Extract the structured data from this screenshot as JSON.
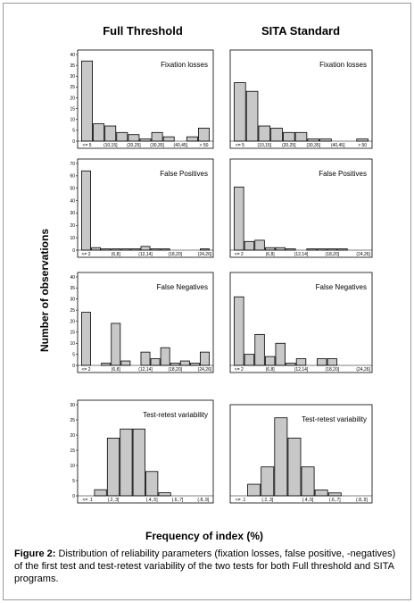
{
  "figure": {
    "column_titles": [
      "Full Threshold",
      "SITA Standard"
    ],
    "ylabel": "Number of observations",
    "xlabel": "Frequency of index (%)",
    "caption_label": "Figure 2:",
    "caption_text": " Distribution of reliability parameters (fixation losses, false positive, -negatives) of the first test and test-retest variability of the two tests for both Full threshold and SITA programs."
  },
  "chart_data": [
    {
      "type": "bar",
      "panel": "Full Threshold",
      "title": "Fixation losses",
      "ylim": [
        0,
        40
      ],
      "yticks": [
        0,
        5,
        10,
        15,
        20,
        25,
        30,
        35,
        40
      ],
      "x_tick_labels": [
        "<= 5",
        "(10,15]",
        "(20,25]",
        "(30,35]",
        "(40,45]",
        "> 50"
      ],
      "values": [
        37,
        8,
        7,
        4,
        3,
        1,
        4,
        2,
        0,
        2,
        6
      ]
    },
    {
      "type": "bar",
      "panel": "SITA Standard",
      "title": "Fixation losses",
      "ylim": [
        0,
        40
      ],
      "yticks": [
        0,
        5,
        10,
        15,
        20,
        25,
        30,
        35,
        40
      ],
      "x_tick_labels": [
        "<= 5",
        "(10,15]",
        "(20,25]",
        "(30,35]",
        "(40,45]",
        "> 50"
      ],
      "values": [
        27,
        23,
        7,
        6,
        4,
        4,
        1,
        1,
        0,
        0,
        1
      ]
    },
    {
      "type": "bar",
      "panel": "Full Threshold",
      "title": "False Positives",
      "ylim": [
        0,
        70
      ],
      "yticks": [
        0,
        10,
        20,
        30,
        40,
        50,
        60,
        70
      ],
      "x_tick_labels": [
        "<= 2",
        "(6,8]",
        "(12,14]",
        "(18,20]",
        "(24,26]"
      ],
      "values": [
        64,
        2,
        1,
        1,
        1,
        1,
        3,
        1,
        1,
        0,
        0,
        0,
        1
      ]
    },
    {
      "type": "bar",
      "panel": "SITA Standard",
      "title": "False Positives",
      "ylim": [
        0,
        70
      ],
      "yticks": [
        0,
        10,
        20,
        30,
        40,
        50,
        60,
        70
      ],
      "x_tick_labels": [
        "<= 2",
        "(6,8]",
        "(12,14]",
        "(18,20]",
        "(24,26]"
      ],
      "values": [
        51,
        7,
        8,
        2,
        2,
        1,
        0,
        1,
        1,
        1,
        1,
        0,
        0
      ]
    },
    {
      "type": "bar",
      "panel": "Full Threshold",
      "title": "False Negatives",
      "ylim": [
        0,
        40
      ],
      "yticks": [
        0,
        5,
        10,
        15,
        20,
        25,
        30,
        35,
        40
      ],
      "x_tick_labels": [
        "<= 2",
        "(6,8]",
        "(12,14]",
        "(18,20]",
        "(24,26]"
      ],
      "values": [
        24,
        0,
        1,
        19,
        2,
        0,
        6,
        3,
        8,
        1,
        2,
        1,
        6
      ]
    },
    {
      "type": "bar",
      "panel": "SITA Standard",
      "title": "False Negatives",
      "ylim": [
        0,
        40
      ],
      "yticks": [
        0,
        5,
        10,
        15,
        20,
        25,
        30,
        35,
        40
      ],
      "x_tick_labels": [
        "<= 2",
        "(6,8]",
        "(12,14]",
        "(18,20]",
        "(24,26]"
      ],
      "values": [
        31,
        5,
        14,
        4,
        10,
        1,
        3,
        0,
        3,
        3,
        0,
        0,
        0
      ]
    },
    {
      "type": "bar",
      "panel": "Full Threshold",
      "title": "Test-retest variability",
      "ylim": [
        0,
        30
      ],
      "yticks": [
        0,
        5,
        10,
        15,
        20,
        25,
        30
      ],
      "x_tick_labels": [
        "<= .1",
        "(.2,.3]",
        "(.4,.5]",
        "(.6,.7]",
        "(.8,.9]"
      ],
      "values": [
        0,
        2,
        19,
        22,
        22,
        8,
        1,
        0,
        0,
        0
      ]
    },
    {
      "type": "bar",
      "panel": "SITA Standard",
      "title": "Test-retest variability",
      "ylim": [
        0,
        30
      ],
      "yticks": [
        0,
        5,
        10,
        15,
        20,
        25,
        30
      ],
      "x_tick_labels": [
        "<= .1",
        "(.2,.3]",
        "(.4,.5]",
        "(.6,.7]",
        "(.8,.9]"
      ],
      "values": [
        0,
        4,
        10,
        27,
        20,
        10,
        2,
        1,
        0,
        0
      ]
    }
  ]
}
